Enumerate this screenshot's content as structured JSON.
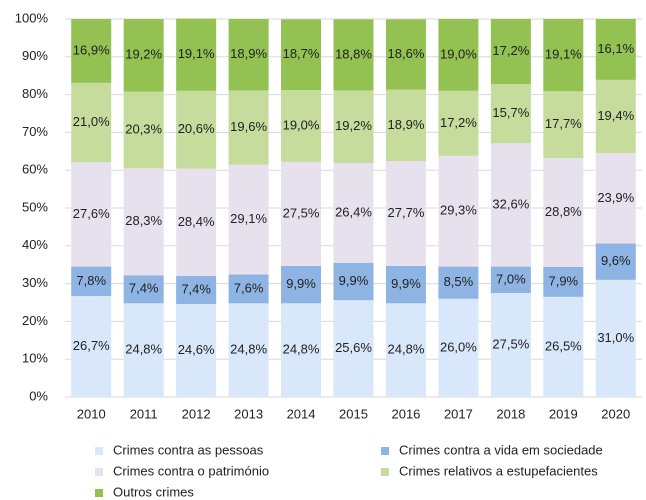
{
  "chart_data": {
    "type": "stacked_bar",
    "categories": [
      "2010",
      "2011",
      "2012",
      "2013",
      "2014",
      "2015",
      "2016",
      "2017",
      "2018",
      "2019",
      "2020"
    ],
    "series": [
      {
        "name": "Crimes contra as pessoas",
        "color": "#d9e7fb",
        "values": [
          26.7,
          24.8,
          24.6,
          24.8,
          24.8,
          25.6,
          24.8,
          26.0,
          27.5,
          26.5,
          31.0
        ],
        "value_labels": [
          "26,7%",
          "24,8%",
          "24,6%",
          "24,8%",
          "24,8%",
          "25,6%",
          "24,8%",
          "26,0%",
          "27,5%",
          "26,5%",
          "31,0%"
        ]
      },
      {
        "name": "Crimes contra a vida em sociedade",
        "color": "#8db4e2",
        "values": [
          7.8,
          7.4,
          7.4,
          7.6,
          9.9,
          9.9,
          9.9,
          8.5,
          7.0,
          7.9,
          9.6
        ],
        "value_labels": [
          "7,8%",
          "7,4%",
          "7,4%",
          "7,6%",
          "9,9%",
          "9,9%",
          "9,9%",
          "8,5%",
          "7,0%",
          "7,9%",
          "9,6%"
        ]
      },
      {
        "name": "Crimes contra o património",
        "color": "#e7e1ee",
        "values": [
          27.6,
          28.3,
          28.4,
          29.1,
          27.5,
          26.4,
          27.7,
          29.3,
          32.6,
          28.8,
          23.9
        ],
        "value_labels": [
          "27,6%",
          "28,3%",
          "28,4%",
          "29,1%",
          "27,5%",
          "26,4%",
          "27,7%",
          "29,3%",
          "32,6%",
          "28,8%",
          "23,9%"
        ]
      },
      {
        "name": "Crimes relativos a estupefacientes",
        "color": "#c5dc9c",
        "values": [
          21.0,
          20.3,
          20.6,
          19.6,
          19.0,
          19.2,
          18.9,
          17.2,
          15.7,
          17.7,
          19.4
        ],
        "value_labels": [
          "21,0%",
          "20,3%",
          "20,6%",
          "19,6%",
          "19,0%",
          "19,2%",
          "18,9%",
          "17,2%",
          "15,7%",
          "17,7%",
          "19,4%"
        ]
      },
      {
        "name": "Outros crimes",
        "color": "#93c152",
        "values": [
          16.9,
          19.2,
          19.1,
          18.9,
          18.7,
          18.8,
          18.6,
          19.0,
          17.2,
          19.1,
          16.1
        ],
        "value_labels": [
          "16,9%",
          "19,2%",
          "19,1%",
          "18,9%",
          "18,7%",
          "18,8%",
          "18,6%",
          "19,0%",
          "17,2%",
          "19,1%",
          "16,1%"
        ]
      }
    ],
    "ylim": [
      0,
      100
    ],
    "yticks": [
      {
        "value": 0,
        "label": "0%"
      },
      {
        "value": 10,
        "label": "10%"
      },
      {
        "value": 20,
        "label": "20%"
      },
      {
        "value": 30,
        "label": "30%"
      },
      {
        "value": 40,
        "label": "40%"
      },
      {
        "value": 50,
        "label": "50%"
      },
      {
        "value": 60,
        "label": "60%"
      },
      {
        "value": 70,
        "label": "70%"
      },
      {
        "value": 80,
        "label": "80%"
      },
      {
        "value": 90,
        "label": "90%"
      },
      {
        "value": 100,
        "label": "100%"
      }
    ],
    "grid": true
  }
}
